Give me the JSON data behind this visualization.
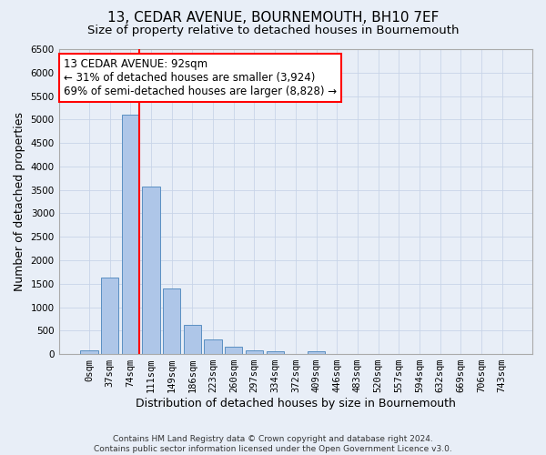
{
  "title": "13, CEDAR AVENUE, BOURNEMOUTH, BH10 7EF",
  "subtitle": "Size of property relative to detached houses in Bournemouth",
  "xlabel": "Distribution of detached houses by size in Bournemouth",
  "ylabel": "Number of detached properties",
  "footer_line1": "Contains HM Land Registry data © Crown copyright and database right 2024.",
  "footer_line2": "Contains public sector information licensed under the Open Government Licence v3.0.",
  "categories": [
    "0sqm",
    "37sqm",
    "74sqm",
    "111sqm",
    "149sqm",
    "186sqm",
    "223sqm",
    "260sqm",
    "297sqm",
    "334sqm",
    "372sqm",
    "409sqm",
    "446sqm",
    "483sqm",
    "520sqm",
    "557sqm",
    "594sqm",
    "632sqm",
    "669sqm",
    "706sqm",
    "743sqm"
  ],
  "bar_values": [
    70,
    1640,
    5100,
    3580,
    1400,
    620,
    305,
    155,
    80,
    55,
    0,
    55,
    0,
    0,
    0,
    0,
    0,
    0,
    0,
    0,
    0
  ],
  "bar_color": "#aec6e8",
  "bar_edge_color": "#5a8fc2",
  "vline_color": "red",
  "vline_x_index": 2.5,
  "annotation_text": "13 CEDAR AVENUE: 92sqm\n← 31% of detached houses are smaller (3,924)\n69% of semi-detached houses are larger (8,828) →",
  "annotation_box_color": "white",
  "annotation_box_edge_color": "red",
  "ylim": [
    0,
    6500
  ],
  "yticks": [
    0,
    500,
    1000,
    1500,
    2000,
    2500,
    3000,
    3500,
    4000,
    4500,
    5000,
    5500,
    6000,
    6500
  ],
  "grid_color": "#c8d4e8",
  "bg_color": "#e8eef7",
  "title_fontsize": 11,
  "subtitle_fontsize": 9.5,
  "xlabel_fontsize": 9,
  "ylabel_fontsize": 9,
  "tick_fontsize": 7.5,
  "annotation_fontsize": 8.5,
  "footer_fontsize": 6.5
}
